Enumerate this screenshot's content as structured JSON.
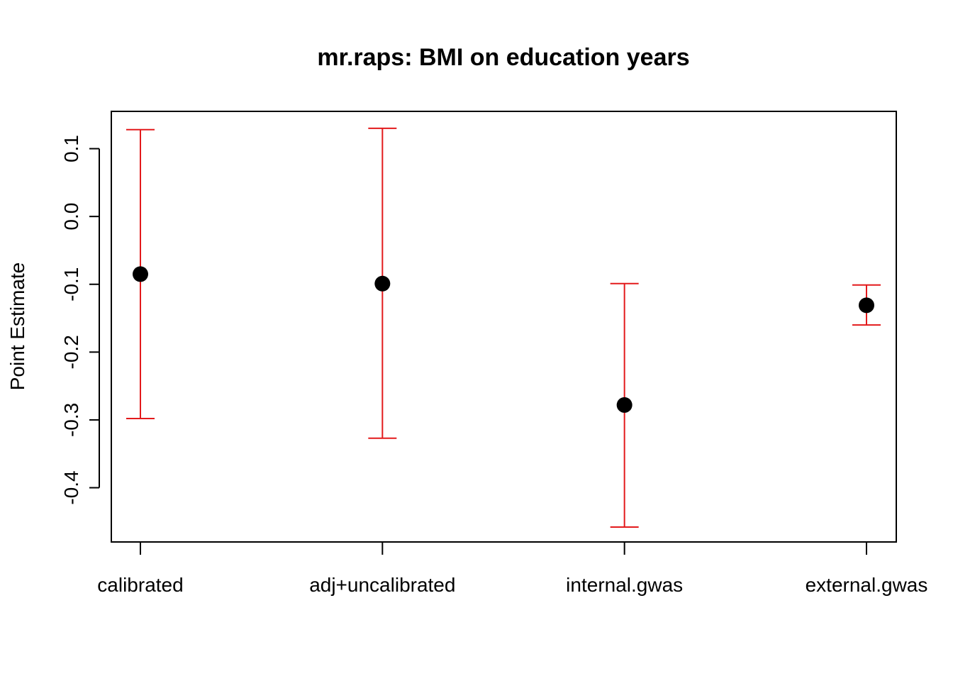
{
  "chart_data": {
    "type": "scatter",
    "title": "mr.raps: BMI on education years",
    "xlabel": "",
    "ylabel": "Point Estimate",
    "categories": [
      "calibrated",
      "adj+uncalibrated",
      "internal.gwas",
      "external.gwas"
    ],
    "yticks": [
      -0.4,
      -0.3,
      -0.2,
      -0.1,
      0.0,
      0.1
    ],
    "ytick_labels": [
      "-0.4",
      "-0.3",
      "-0.2",
      "-0.1",
      "0.0",
      "0.1"
    ],
    "ylim": [
      -0.48,
      0.155
    ],
    "grid": false,
    "legend": "none",
    "points": [
      {
        "category": "calibrated",
        "estimate": -0.085,
        "lower": -0.298,
        "upper": 0.128
      },
      {
        "category": "adj+uncalibrated",
        "estimate": -0.099,
        "lower": -0.327,
        "upper": 0.13
      },
      {
        "category": "internal.gwas",
        "estimate": -0.278,
        "lower": -0.458,
        "upper": -0.099
      },
      {
        "category": "external.gwas",
        "estimate": -0.131,
        "lower": -0.16,
        "upper": -0.101
      }
    ],
    "colors": {
      "point": "#000000",
      "error_bar": "#e31a1c",
      "axis": "#000000"
    }
  }
}
